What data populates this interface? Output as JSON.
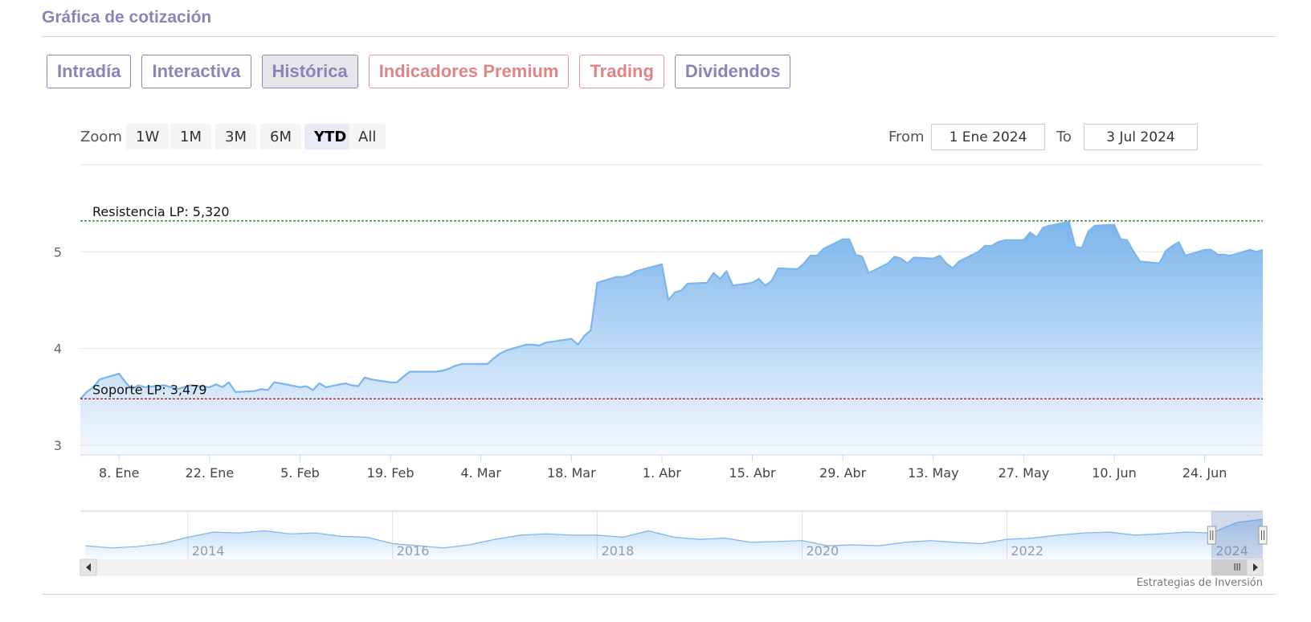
{
  "header": {
    "title": "Gráfica de cotización"
  },
  "tabs": [
    {
      "label": "Intradía",
      "style": "normal"
    },
    {
      "label": "Interactiva",
      "style": "normal"
    },
    {
      "label": "Histórica",
      "style": "active"
    },
    {
      "label": "Indicadores Premium",
      "style": "red"
    },
    {
      "label": "Trading",
      "style": "red"
    },
    {
      "label": "Dividendos",
      "style": "normal"
    }
  ],
  "range_selector": {
    "zoom_label": "Zoom",
    "buttons": [
      "1W",
      "1M",
      "3M",
      "6M",
      "YTD",
      "All"
    ],
    "selected": "YTD",
    "from_label": "From",
    "from_value": "1 Ene 2024",
    "to_label": "To",
    "to_value": "3 Jul 2024"
  },
  "chart_data": {
    "type": "area",
    "title": "",
    "xlabel": "",
    "ylabel": "",
    "ylim": [
      2.9,
      5.9
    ],
    "yticks": [
      3,
      4,
      5
    ],
    "xlim": [
      "2024-01-02",
      "2024-07-03"
    ],
    "x_tick_labels": [
      "8. Ene",
      "22. Ene",
      "5. Feb",
      "19. Feb",
      "4. Mar",
      "18. Mar",
      "1. Abr",
      "15. Abr",
      "29. Abr",
      "13. May",
      "27. May",
      "10. Jun",
      "24. Jun"
    ],
    "x_tick_dates": [
      "2024-01-08",
      "2024-01-22",
      "2024-02-05",
      "2024-02-19",
      "2024-03-04",
      "2024-03-18",
      "2024-04-01",
      "2024-04-15",
      "2024-04-29",
      "2024-05-13",
      "2024-05-27",
      "2024-06-10",
      "2024-06-24"
    ],
    "grid": true,
    "series": [
      {
        "color": "#7cb5ec",
        "points": [
          [
            "2024-01-02",
            3.48
          ],
          [
            "2024-01-03",
            3.55
          ],
          [
            "2024-01-04",
            3.6
          ],
          [
            "2024-01-05",
            3.68
          ],
          [
            "2024-01-08",
            3.74
          ],
          [
            "2024-01-09",
            3.65
          ],
          [
            "2024-01-10",
            3.58
          ],
          [
            "2024-01-11",
            3.62
          ],
          [
            "2024-01-12",
            3.6
          ],
          [
            "2024-01-15",
            3.62
          ],
          [
            "2024-01-16",
            3.6
          ],
          [
            "2024-01-17",
            3.58
          ],
          [
            "2024-01-18",
            3.6
          ],
          [
            "2024-01-19",
            3.62
          ],
          [
            "2024-01-22",
            3.6
          ],
          [
            "2024-01-23",
            3.63
          ],
          [
            "2024-01-24",
            3.6
          ],
          [
            "2024-01-25",
            3.65
          ],
          [
            "2024-01-26",
            3.55
          ],
          [
            "2024-01-29",
            3.56
          ],
          [
            "2024-01-30",
            3.58
          ],
          [
            "2024-01-31",
            3.57
          ],
          [
            "2024-02-01",
            3.65
          ],
          [
            "2024-02-02",
            3.64
          ],
          [
            "2024-02-05",
            3.6
          ],
          [
            "2024-02-06",
            3.61
          ],
          [
            "2024-02-07",
            3.57
          ],
          [
            "2024-02-08",
            3.64
          ],
          [
            "2024-02-09",
            3.6
          ],
          [
            "2024-02-12",
            3.64
          ],
          [
            "2024-02-13",
            3.62
          ],
          [
            "2024-02-14",
            3.61
          ],
          [
            "2024-02-15",
            3.7
          ],
          [
            "2024-02-16",
            3.68
          ],
          [
            "2024-02-19",
            3.65
          ],
          [
            "2024-02-20",
            3.65
          ],
          [
            "2024-02-21",
            3.71
          ],
          [
            "2024-02-22",
            3.76
          ],
          [
            "2024-02-23",
            3.76
          ],
          [
            "2024-02-26",
            3.76
          ],
          [
            "2024-02-27",
            3.77
          ],
          [
            "2024-02-28",
            3.79
          ],
          [
            "2024-02-29",
            3.82
          ],
          [
            "2024-03-01",
            3.84
          ],
          [
            "2024-03-04",
            3.84
          ],
          [
            "2024-03-05",
            3.84
          ],
          [
            "2024-03-06",
            3.9
          ],
          [
            "2024-03-07",
            3.95
          ],
          [
            "2024-03-08",
            3.98
          ],
          [
            "2024-03-11",
            4.04
          ],
          [
            "2024-03-12",
            4.04
          ],
          [
            "2024-03-13",
            4.03
          ],
          [
            "2024-03-14",
            4.06
          ],
          [
            "2024-03-15",
            4.07
          ],
          [
            "2024-03-18",
            4.1
          ],
          [
            "2024-03-19",
            4.04
          ],
          [
            "2024-03-20",
            4.13
          ],
          [
            "2024-03-21",
            4.19
          ],
          [
            "2024-03-22",
            4.68
          ],
          [
            "2024-03-25",
            4.74
          ],
          [
            "2024-03-26",
            4.74
          ],
          [
            "2024-03-27",
            4.76
          ],
          [
            "2024-03-28",
            4.8
          ],
          [
            "2024-04-01",
            4.87
          ],
          [
            "2024-04-02",
            4.5
          ],
          [
            "2024-04-03",
            4.58
          ],
          [
            "2024-04-04",
            4.6
          ],
          [
            "2024-04-05",
            4.67
          ],
          [
            "2024-04-08",
            4.68
          ],
          [
            "2024-04-09",
            4.78
          ],
          [
            "2024-04-10",
            4.72
          ],
          [
            "2024-04-11",
            4.8
          ],
          [
            "2024-04-12",
            4.65
          ],
          [
            "2024-04-15",
            4.68
          ],
          [
            "2024-04-16",
            4.72
          ],
          [
            "2024-04-17",
            4.65
          ],
          [
            "2024-04-18",
            4.7
          ],
          [
            "2024-04-19",
            4.83
          ],
          [
            "2024-04-22",
            4.82
          ],
          [
            "2024-04-23",
            4.88
          ],
          [
            "2024-04-24",
            4.96
          ],
          [
            "2024-04-25",
            4.96
          ],
          [
            "2024-04-26",
            5.03
          ],
          [
            "2024-04-29",
            5.13
          ],
          [
            "2024-04-30",
            5.13
          ],
          [
            "2024-05-01",
            4.97
          ],
          [
            "2024-05-02",
            4.95
          ],
          [
            "2024-05-03",
            4.78
          ],
          [
            "2024-05-06",
            4.88
          ],
          [
            "2024-05-07",
            4.95
          ],
          [
            "2024-05-08",
            4.93
          ],
          [
            "2024-05-09",
            4.88
          ],
          [
            "2024-05-10",
            4.94
          ],
          [
            "2024-05-13",
            4.93
          ],
          [
            "2024-05-14",
            4.96
          ],
          [
            "2024-05-15",
            4.88
          ],
          [
            "2024-05-16",
            4.83
          ],
          [
            "2024-05-17",
            4.9
          ],
          [
            "2024-05-20",
            5.0
          ],
          [
            "2024-05-21",
            5.06
          ],
          [
            "2024-05-22",
            5.06
          ],
          [
            "2024-05-23",
            5.1
          ],
          [
            "2024-05-24",
            5.12
          ],
          [
            "2024-05-27",
            5.12
          ],
          [
            "2024-05-28",
            5.2
          ],
          [
            "2024-05-29",
            5.15
          ],
          [
            "2024-05-30",
            5.25
          ],
          [
            "2024-05-31",
            5.27
          ],
          [
            "2024-06-03",
            5.31
          ],
          [
            "2024-06-04",
            5.05
          ],
          [
            "2024-06-05",
            5.04
          ],
          [
            "2024-06-06",
            5.21
          ],
          [
            "2024-06-07",
            5.27
          ],
          [
            "2024-06-10",
            5.28
          ],
          [
            "2024-06-11",
            5.13
          ],
          [
            "2024-06-12",
            5.12
          ],
          [
            "2024-06-13",
            5.0
          ],
          [
            "2024-06-14",
            4.9
          ],
          [
            "2024-06-17",
            4.88
          ],
          [
            "2024-06-18",
            5.01
          ],
          [
            "2024-06-19",
            5.06
          ],
          [
            "2024-06-20",
            5.1
          ],
          [
            "2024-06-21",
            4.96
          ],
          [
            "2024-06-24",
            5.02
          ],
          [
            "2024-06-25",
            5.02
          ],
          [
            "2024-06-26",
            4.97
          ],
          [
            "2024-06-27",
            4.97
          ],
          [
            "2024-06-28",
            4.96
          ],
          [
            "2024-07-01",
            5.02
          ],
          [
            "2024-07-02",
            5.0
          ],
          [
            "2024-07-03",
            5.02
          ]
        ]
      }
    ],
    "plot_lines": [
      {
        "label": "Resistencia LP: 5,320",
        "value": 5.32,
        "color": "#2e7d32"
      },
      {
        "label": "Soporte LP: 3,479",
        "value": 3.479,
        "color": "#b71c1c"
      }
    ],
    "navigator": {
      "year_labels": [
        "2014",
        "2016",
        "2018",
        "2020",
        "2022",
        "2024"
      ],
      "series": [
        [
          "2013-01",
          0.3
        ],
        [
          "2013-04",
          0.25
        ],
        [
          "2013-07",
          0.28
        ],
        [
          "2013-10",
          0.35
        ],
        [
          "2014-01",
          0.5
        ],
        [
          "2014-04",
          0.62
        ],
        [
          "2014-07",
          0.6
        ],
        [
          "2014-10",
          0.65
        ],
        [
          "2015-01",
          0.58
        ],
        [
          "2015-04",
          0.6
        ],
        [
          "2015-07",
          0.52
        ],
        [
          "2015-10",
          0.5
        ],
        [
          "2016-01",
          0.35
        ],
        [
          "2016-04",
          0.3
        ],
        [
          "2016-07",
          0.25
        ],
        [
          "2016-10",
          0.32
        ],
        [
          "2017-01",
          0.45
        ],
        [
          "2017-04",
          0.55
        ],
        [
          "2017-07",
          0.58
        ],
        [
          "2017-10",
          0.55
        ],
        [
          "2018-01",
          0.55
        ],
        [
          "2018-04",
          0.5
        ],
        [
          "2018-07",
          0.65
        ],
        [
          "2018-10",
          0.5
        ],
        [
          "2019-01",
          0.45
        ],
        [
          "2019-04",
          0.48
        ],
        [
          "2019-07",
          0.38
        ],
        [
          "2019-10",
          0.4
        ],
        [
          "2020-01",
          0.42
        ],
        [
          "2020-04",
          0.3
        ],
        [
          "2020-07",
          0.32
        ],
        [
          "2020-10",
          0.3
        ],
        [
          "2021-01",
          0.38
        ],
        [
          "2021-04",
          0.42
        ],
        [
          "2021-07",
          0.38
        ],
        [
          "2021-10",
          0.35
        ],
        [
          "2022-01",
          0.45
        ],
        [
          "2022-04",
          0.48
        ],
        [
          "2022-07",
          0.55
        ],
        [
          "2022-10",
          0.6
        ],
        [
          "2023-01",
          0.62
        ],
        [
          "2023-04",
          0.55
        ],
        [
          "2023-07",
          0.58
        ],
        [
          "2023-10",
          0.62
        ],
        [
          "2024-01",
          0.6
        ],
        [
          "2024-04",
          0.85
        ],
        [
          "2024-07",
          0.92
        ]
      ],
      "selected_range": [
        "2024-01",
        "2024-07"
      ]
    },
    "credit": "Estrategias de Inversión"
  }
}
